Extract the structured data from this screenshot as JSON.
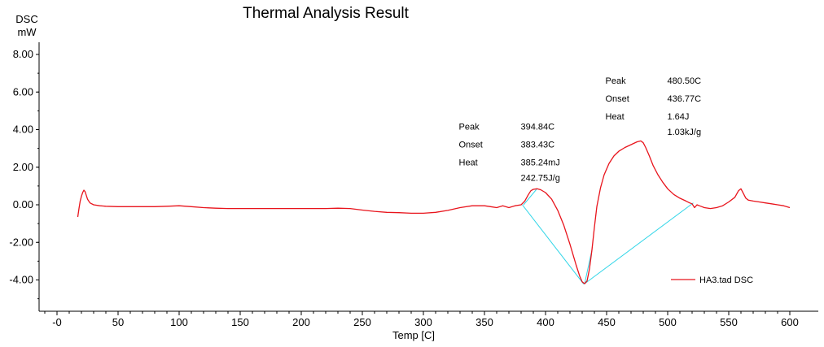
{
  "chart_data": {
    "type": "line",
    "title": "Thermal Analysis Result",
    "ylabel_line1": "DSC",
    "ylabel_line2": "mW",
    "xlabel": "Temp  [C]",
    "xlim": [
      -5,
      610
    ],
    "ylim": [
      -5.5,
      8.7
    ],
    "xticks": [
      0,
      50,
      100,
      150,
      200,
      250,
      300,
      350,
      400,
      450,
      500,
      550,
      600
    ],
    "xtick_labels": [
      "-0",
      "50",
      "100",
      "150",
      "200",
      "250",
      "300",
      "350",
      "400",
      "450",
      "500",
      "550",
      "600"
    ],
    "yticks": [
      8,
      6,
      4,
      2,
      0,
      -2,
      -4
    ],
    "ytick_labels": [
      "8.00",
      "6.00",
      "4.00",
      "2.00",
      "0.00",
      "-2.00",
      "-4.00"
    ],
    "grid": false,
    "legend_position": "bottom-right",
    "series": [
      {
        "name": "HA3.tad  DSC",
        "color": "#e8141c",
        "x": [
          17,
          18,
          19,
          20,
          21,
          22,
          23,
          24,
          25,
          27,
          30,
          35,
          40,
          50,
          60,
          70,
          80,
          90,
          100,
          110,
          120,
          130,
          140,
          150,
          160,
          180,
          200,
          220,
          230,
          240,
          250,
          260,
          270,
          280,
          290,
          300,
          310,
          320,
          330,
          340,
          345,
          350,
          355,
          360,
          365,
          370,
          375,
          380,
          383,
          386,
          388,
          390,
          393,
          396,
          400,
          405,
          410,
          415,
          420,
          425,
          428,
          430,
          432,
          434,
          436,
          438,
          440,
          442,
          445,
          448,
          452,
          456,
          460,
          465,
          470,
          475,
          478,
          480,
          482,
          485,
          488,
          492,
          496,
          500,
          505,
          510,
          515,
          518,
          520,
          522,
          524,
          526,
          528,
          530,
          535,
          540,
          545,
          550,
          555,
          558,
          560,
          562,
          564,
          566,
          570,
          575,
          580,
          585,
          590,
          595,
          600
        ],
        "y": [
          -0.65,
          -0.2,
          0.2,
          0.45,
          0.65,
          0.78,
          0.7,
          0.5,
          0.3,
          0.1,
          0.0,
          -0.05,
          -0.08,
          -0.1,
          -0.1,
          -0.1,
          -0.1,
          -0.08,
          -0.05,
          -0.1,
          -0.15,
          -0.18,
          -0.2,
          -0.2,
          -0.2,
          -0.2,
          -0.2,
          -0.2,
          -0.18,
          -0.2,
          -0.28,
          -0.35,
          -0.4,
          -0.42,
          -0.45,
          -0.45,
          -0.4,
          -0.3,
          -0.15,
          -0.05,
          -0.05,
          -0.05,
          -0.1,
          -0.15,
          -0.05,
          -0.15,
          -0.05,
          0.0,
          0.2,
          0.55,
          0.75,
          0.82,
          0.85,
          0.8,
          0.65,
          0.3,
          -0.3,
          -1.1,
          -2.1,
          -3.2,
          -3.8,
          -4.1,
          -4.2,
          -4.05,
          -3.4,
          -2.4,
          -1.2,
          -0.1,
          0.9,
          1.6,
          2.2,
          2.6,
          2.85,
          3.05,
          3.2,
          3.35,
          3.4,
          3.3,
          3.05,
          2.6,
          2.1,
          1.6,
          1.2,
          0.85,
          0.55,
          0.35,
          0.2,
          0.1,
          0.05,
          -0.15,
          0.0,
          -0.05,
          -0.1,
          -0.15,
          -0.2,
          -0.15,
          -0.05,
          0.15,
          0.4,
          0.75,
          0.85,
          0.6,
          0.35,
          0.25,
          0.2,
          0.15,
          0.1,
          0.05,
          0.0,
          -0.05,
          -0.15
        ]
      }
    ],
    "baselines": [
      {
        "color": "#33d6e8",
        "x": [
          381,
          431,
          432
        ],
        "y": [
          0.0,
          -4.2,
          -4.2
        ]
      },
      {
        "color": "#33d6e8",
        "x": [
          382,
          393
        ],
        "y": [
          0.0,
          0.85
        ]
      },
      {
        "color": "#33d6e8",
        "x": [
          432,
          521
        ],
        "y": [
          -4.2,
          0.1
        ]
      },
      {
        "color": "#33d6e8",
        "x": [
          432,
          438
        ],
        "y": [
          -4.2,
          -2.4
        ]
      }
    ],
    "annotations": [
      {
        "anchor": [
          329,
          4.0
        ],
        "rows": [
          {
            "label": "Peak",
            "value": "394.84C"
          },
          {
            "label": "Onset",
            "value": "383.43C"
          },
          {
            "label": "Heat",
            "value": "385.24mJ"
          },
          {
            "label": "",
            "value": "242.75J/g"
          }
        ]
      },
      {
        "anchor": [
          449,
          6.45
        ],
        "rows": [
          {
            "label": "Peak",
            "value": "480.50C"
          },
          {
            "label": "Onset",
            "value": "436.77C"
          },
          {
            "label": "Heat",
            "value": "1.64J"
          },
          {
            "label": "",
            "value": "1.03kJ/g"
          }
        ]
      }
    ]
  }
}
